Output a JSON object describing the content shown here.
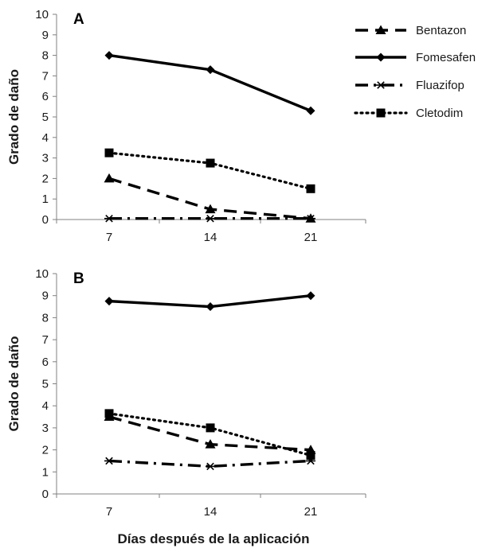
{
  "chart_data": {
    "type": "line",
    "xlabel": "Días después de la aplicación",
    "ylabel": "Grado de daño",
    "x": [
      7,
      14,
      21
    ],
    "ylim": [
      0,
      10
    ],
    "yticks": [
      0,
      1,
      2,
      3,
      4,
      5,
      6,
      7,
      8,
      9,
      10
    ],
    "grid": false,
    "legend_placement": "top-right",
    "legend": [
      {
        "name": "Bentazon",
        "marker": "triangle",
        "dash": "dashed"
      },
      {
        "name": "Fomesafen",
        "marker": "diamond",
        "dash": "solid"
      },
      {
        "name": "Fluazifop",
        "marker": "asterisk",
        "dash": "dash-dot"
      },
      {
        "name": "Cletodim",
        "marker": "square",
        "dash": "dotted"
      }
    ],
    "panels": [
      {
        "label": "A",
        "series": [
          {
            "name": "Bentazon",
            "values": [
              2.0,
              0.5,
              0.05
            ]
          },
          {
            "name": "Fomesafen",
            "values": [
              8.0,
              7.3,
              5.3
            ]
          },
          {
            "name": "Fluazifop",
            "values": [
              0.05,
              0.05,
              0.05
            ]
          },
          {
            "name": "Cletodim",
            "values": [
              3.25,
              2.75,
              1.5
            ]
          }
        ]
      },
      {
        "label": "B",
        "series": [
          {
            "name": "Bentazon",
            "values": [
              3.5,
              2.25,
              2.0
            ]
          },
          {
            "name": "Fomesafen",
            "values": [
              8.75,
              8.5,
              9.0
            ]
          },
          {
            "name": "Fluazifop",
            "values": [
              1.5,
              1.25,
              1.5
            ]
          },
          {
            "name": "Cletodim",
            "values": [
              3.65,
              3.0,
              1.75
            ]
          }
        ]
      }
    ]
  }
}
